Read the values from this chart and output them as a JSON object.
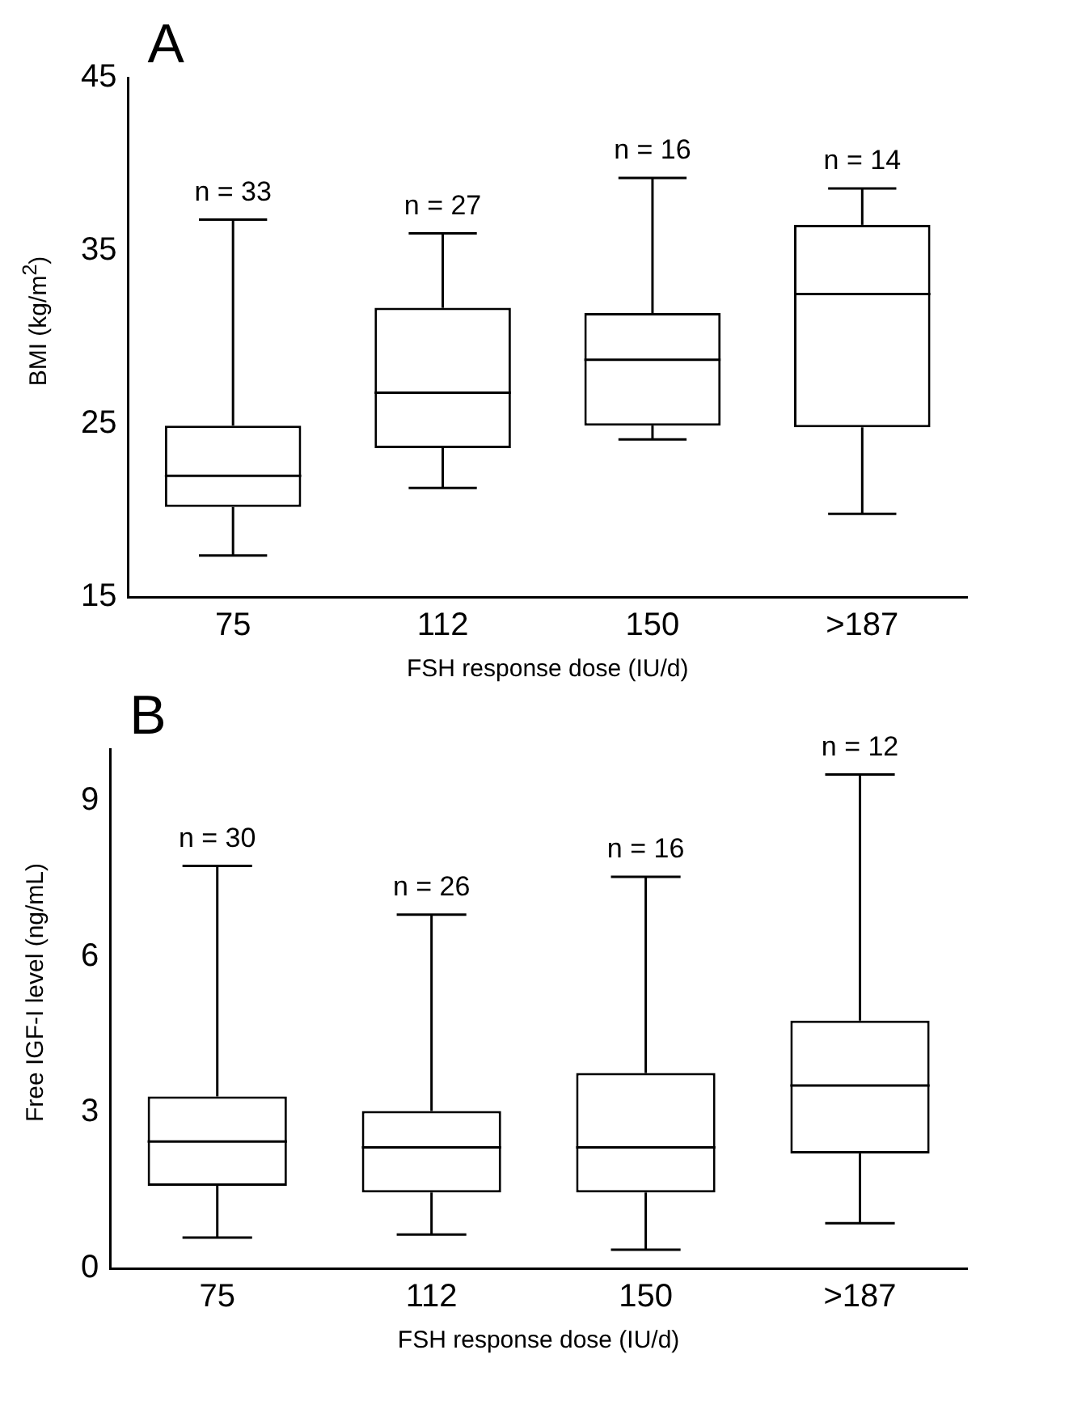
{
  "chart_data": [
    {
      "type": "box",
      "title": "A",
      "categories": [
        "75",
        "112",
        "150",
        ">187"
      ],
      "xlabel": "FSH response dose (IU/d)",
      "ylabel": "BMI (kg/m$^{2}$)",
      "ylim": [
        15,
        45
      ],
      "yticks": [
        15,
        25,
        35,
        45
      ],
      "boxes": [
        {
          "low": 17.4,
          "q1": 20.2,
          "median": 22.0,
          "q3": 24.9,
          "high": 36.8
        },
        {
          "low": 21.3,
          "q1": 23.6,
          "median": 26.8,
          "q3": 31.7,
          "high": 36.0
        },
        {
          "low": 24.1,
          "q1": 24.9,
          "median": 28.7,
          "q3": 31.4,
          "high": 39.2
        },
        {
          "low": 19.8,
          "q1": 24.8,
          "median": 32.5,
          "q3": 36.5,
          "high": 38.6
        }
      ],
      "annotations": [
        {
          "text": "n = 33",
          "x": "75",
          "y": 36.8
        },
        {
          "text": "n = 27",
          "x": "112",
          "y": 36.0
        },
        {
          "text": "n = 16",
          "x": "150",
          "y": 39.2
        },
        {
          "text": "n = 14",
          "x": ">187",
          "y": 38.6
        }
      ]
    },
    {
      "type": "box",
      "title": "B",
      "categories": [
        "75",
        "112",
        "150",
        ">187"
      ],
      "xlabel": "FSH response dose (IU/d)",
      "ylabel": "Free IGF-I level (ng/mL)",
      "ylim": [
        0,
        10
      ],
      "yticks": [
        0,
        3,
        6,
        9
      ],
      "boxes": [
        {
          "low": 0.59,
          "q1": 1.59,
          "median": 2.44,
          "q3": 3.31,
          "high": 7.75
        },
        {
          "low": 0.65,
          "q1": 1.46,
          "median": 2.33,
          "q3": 3.03,
          "high": 6.81
        },
        {
          "low": 0.36,
          "q1": 1.46,
          "median": 2.33,
          "q3": 3.76,
          "high": 7.54
        },
        {
          "low": 0.87,
          "q1": 2.21,
          "median": 3.52,
          "q3": 4.77,
          "high": 9.51
        }
      ],
      "annotations": [
        {
          "text": "n = 30",
          "x": "75",
          "y": 7.75
        },
        {
          "text": "n = 26",
          "x": "112",
          "y": 6.81
        },
        {
          "text": "n = 16",
          "x": "150",
          "y": 7.54
        },
        {
          "text": "n = 12",
          "x": ">187",
          "y": 9.51
        }
      ]
    }
  ]
}
